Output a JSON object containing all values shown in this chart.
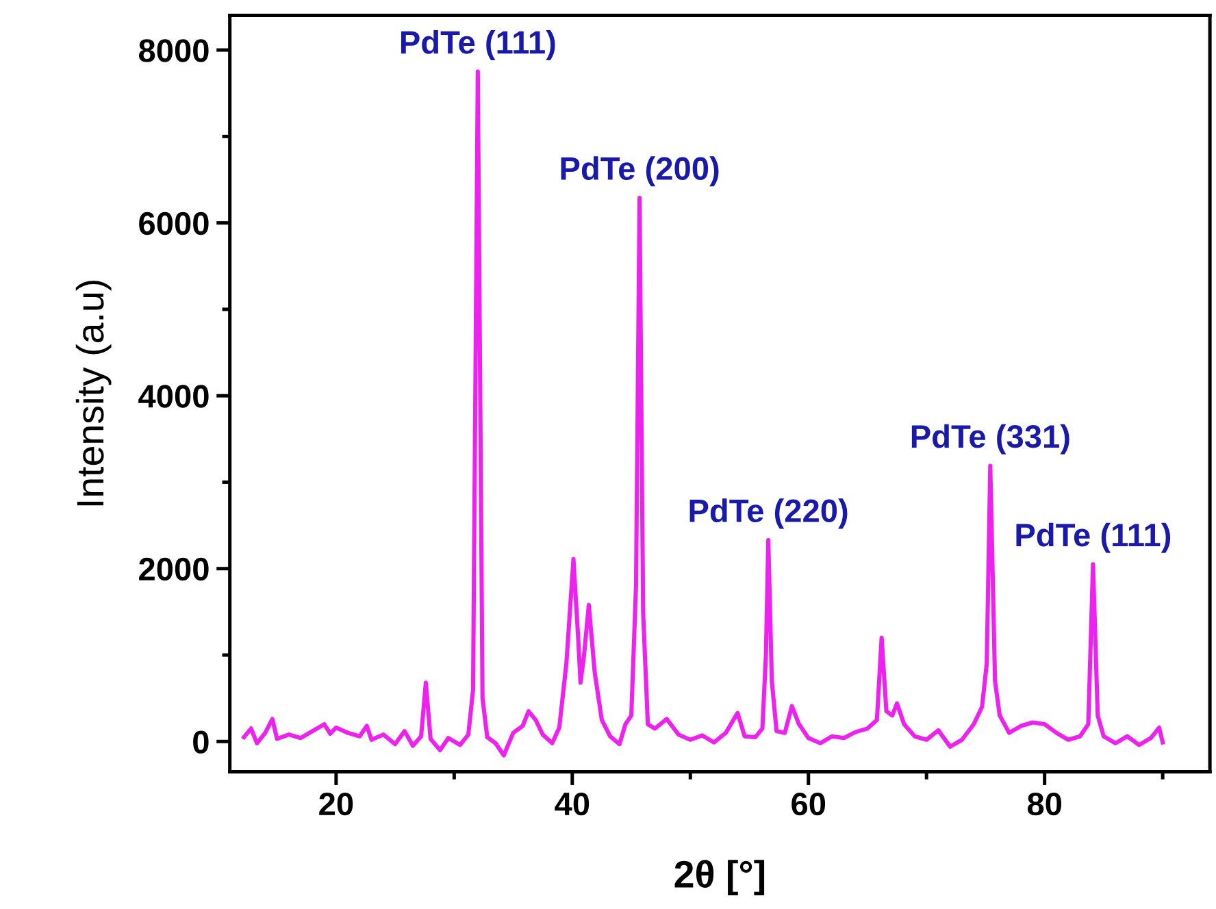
{
  "chart_data": {
    "type": "line",
    "xlabel": "2θ [°]",
    "ylabel": "Intensity (a.u)",
    "xlim": [
      11,
      94
    ],
    "ylim": [
      -350,
      8400
    ],
    "xticks": [
      20,
      {
        "value": 30,
        "label": null
      },
      40,
      {
        "value": 50,
        "label": null
      },
      60,
      {
        "value": 70,
        "label": null
      },
      80,
      {
        "value": 90,
        "label": null
      }
    ],
    "yticks": [
      0,
      {
        "value": 1000,
        "label": null
      },
      2000,
      {
        "value": 3000,
        "label": null
      },
      4000,
      {
        "value": 5000,
        "label": null
      },
      6000,
      {
        "value": 7000,
        "label": null
      },
      8000
    ],
    "grid": false,
    "legend": false,
    "marker": "none",
    "line_style": "solid",
    "series": [
      {
        "color": "#ee22ee",
        "x": [
          12.2,
          12.8,
          13.3,
          14,
          14.6,
          15,
          16,
          17,
          18,
          19,
          19.5,
          20,
          21,
          22,
          22.6,
          23,
          24,
          25,
          25.8,
          26.5,
          27.2,
          27.6,
          28,
          28.8,
          29.5,
          30.5,
          31.2,
          31.6,
          32.0,
          32.4,
          32.8,
          33.5,
          34.2,
          35,
          35.8,
          36.3,
          36.9,
          37.5,
          38.3,
          38.9,
          39.5,
          40.1,
          40.5,
          40.7,
          41.0,
          41.4,
          41.9,
          42.5,
          43.2,
          44,
          44.5,
          45.0,
          45.4,
          45.7,
          46.0,
          46.4,
          47,
          48,
          49,
          50,
          51,
          52,
          53,
          54,
          54.6,
          55.5,
          56.1,
          56.4,
          56.6,
          56.9,
          57.3,
          58,
          58.6,
          59.2,
          60,
          61,
          62,
          63,
          64,
          65,
          65.8,
          66.2,
          66.6,
          67.1,
          67.5,
          68.1,
          69,
          70,
          71,
          72,
          73,
          74,
          74.7,
          75.1,
          75.4,
          75.8,
          76.2,
          77,
          78,
          79,
          80,
          81,
          82,
          83,
          83.7,
          84.1,
          84.5,
          85,
          86,
          87,
          88,
          89,
          89.7,
          90.0
        ],
        "values": [
          50,
          150,
          -20,
          100,
          260,
          30,
          80,
          40,
          120,
          200,
          90,
          160,
          100,
          60,
          180,
          20,
          80,
          -30,
          120,
          -50,
          60,
          680,
          30,
          -100,
          40,
          -40,
          80,
          600,
          7750,
          500,
          50,
          -20,
          -160,
          100,
          180,
          350,
          250,
          80,
          -20,
          160,
          900,
          2110,
          1200,
          680,
          1000,
          1580,
          800,
          250,
          60,
          -30,
          200,
          300,
          1800,
          6290,
          1500,
          200,
          150,
          260,
          80,
          20,
          70,
          -10,
          100,
          330,
          60,
          50,
          150,
          1000,
          2330,
          700,
          120,
          100,
          410,
          200,
          40,
          -20,
          60,
          40,
          110,
          150,
          250,
          1200,
          350,
          300,
          440,
          200,
          60,
          20,
          130,
          -60,
          20,
          200,
          400,
          900,
          3190,
          700,
          300,
          100,
          180,
          220,
          200,
          100,
          20,
          60,
          200,
          2050,
          300,
          60,
          -20,
          60,
          -40,
          40,
          160,
          -10
        ]
      }
    ],
    "annotations": [
      {
        "text": "PdTe (111)",
        "x": 32.0,
        "y": 7750
      },
      {
        "text": "PdTe (200)",
        "x": 45.7,
        "y": 6290
      },
      {
        "text": "PdTe (220)",
        "x": 56.6,
        "y": 2330
      },
      {
        "text": "PdTe (331)",
        "x": 75.4,
        "y": 3190
      },
      {
        "text": "PdTe (111)",
        "x": 84.1,
        "y": 2050
      }
    ]
  }
}
